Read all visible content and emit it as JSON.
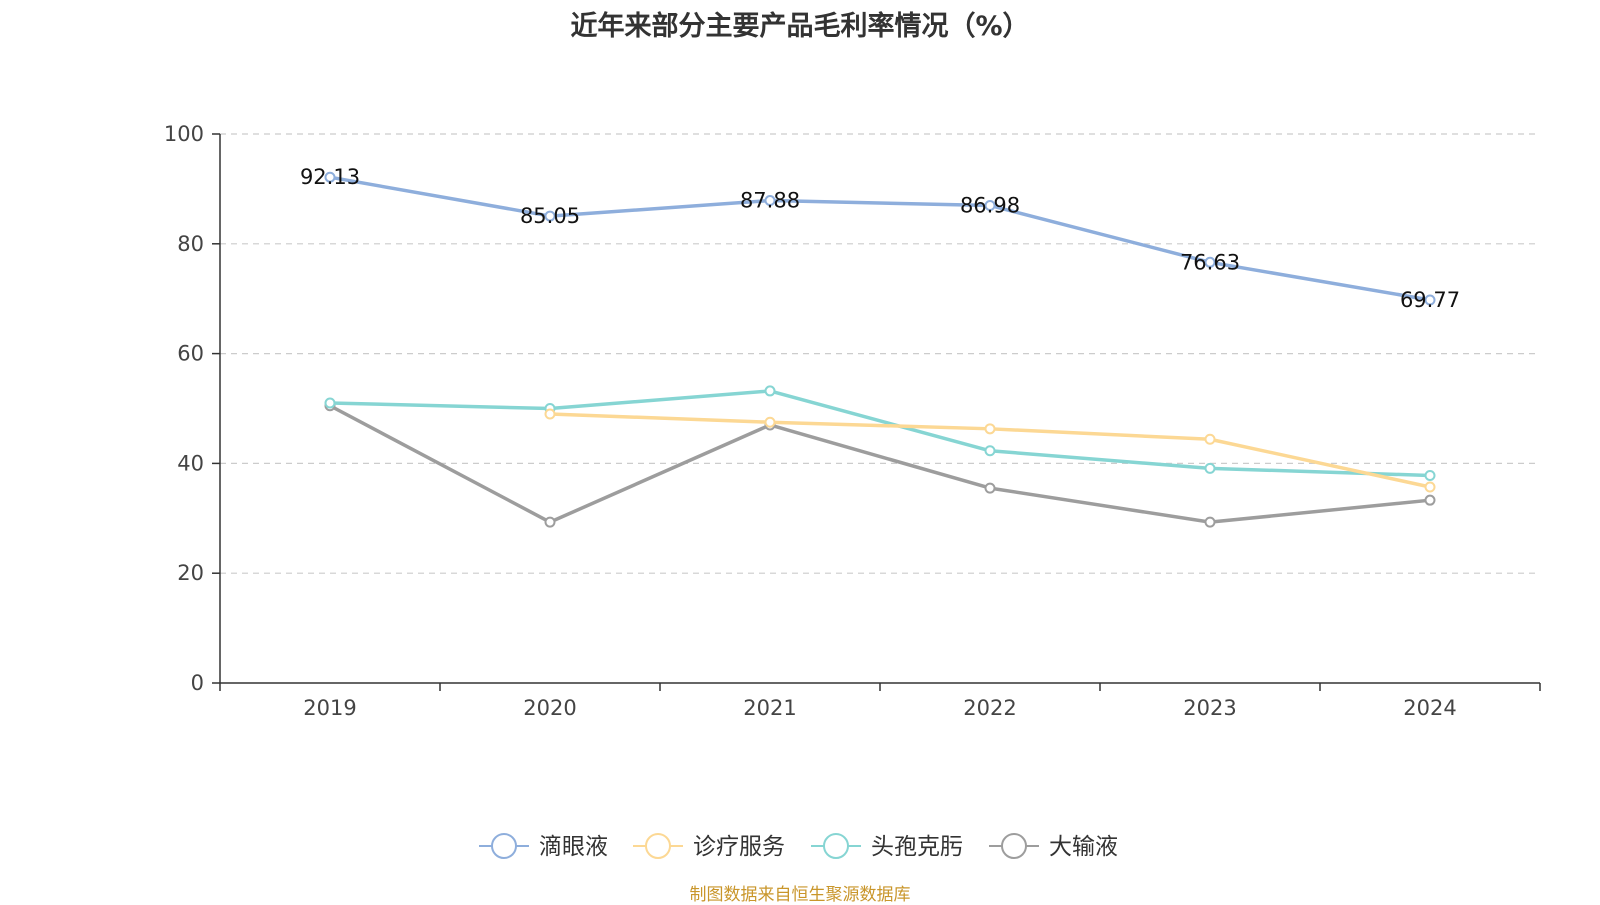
{
  "chart_data": {
    "type": "line",
    "title": "近年来部分主要产品毛利率情况（%）",
    "xlabel": "",
    "ylabel": "",
    "categories": [
      "2019",
      "2020",
      "2021",
      "2022",
      "2023",
      "2024"
    ],
    "ylim": [
      0,
      100
    ],
    "yticks": [
      0,
      20,
      40,
      60,
      80,
      100
    ],
    "grid": true,
    "legend_position": "bottom",
    "series": [
      {
        "name": "滴眼液",
        "color": "#8eaedc",
        "values": [
          92.13,
          85.05,
          87.88,
          86.98,
          76.63,
          69.77
        ],
        "show_labels": true,
        "labels": [
          "92.13",
          "85.05",
          "87.88",
          "86.98",
          "76.63",
          "69.77"
        ]
      },
      {
        "name": "诊疗服务",
        "color": "#fcd894",
        "values": [
          null,
          49.0,
          47.5,
          46.3,
          44.4,
          35.7
        ],
        "show_labels": false
      },
      {
        "name": "头孢克肟",
        "color": "#86d5d3",
        "values": [
          51.0,
          50.0,
          53.2,
          42.3,
          39.1,
          37.8
        ],
        "show_labels": false
      },
      {
        "name": "大输液",
        "color": "#9d9d9d",
        "values": [
          50.5,
          29.3,
          47.0,
          35.5,
          29.3,
          33.3
        ],
        "show_labels": false
      }
    ]
  },
  "source": "制图数据来自恒生聚源数据库"
}
